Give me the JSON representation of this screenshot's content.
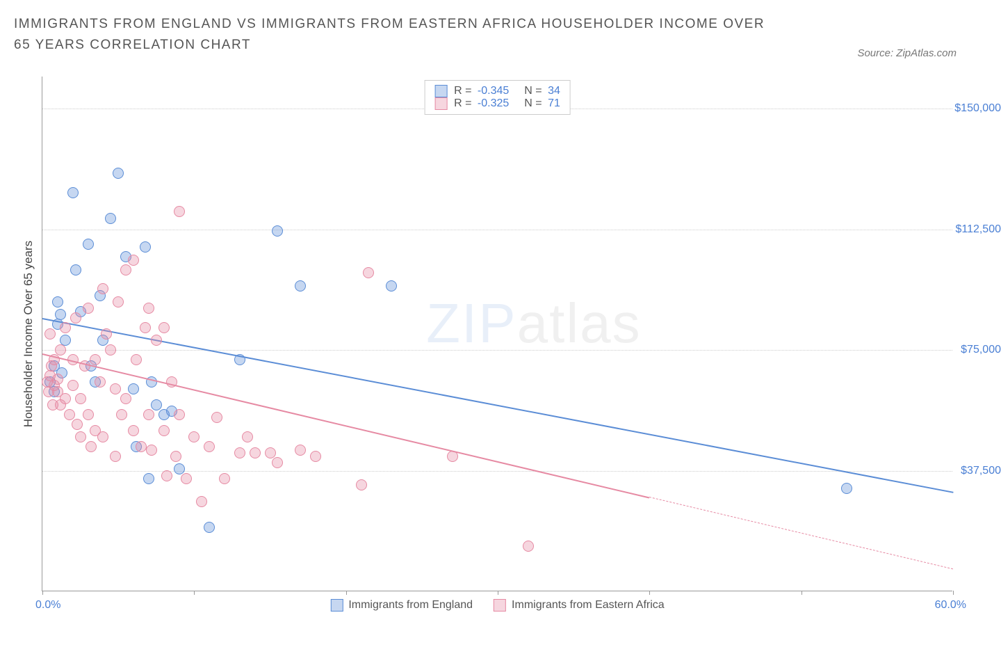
{
  "title": "IMMIGRANTS FROM ENGLAND VS IMMIGRANTS FROM EASTERN AFRICA HOUSEHOLDER INCOME OVER 65 YEARS CORRELATION CHART",
  "source": "Source: ZipAtlas.com",
  "watermark_text_bold": "ZIP",
  "watermark_text_thin": "atlas",
  "chart": {
    "type": "scatter",
    "background_color": "#ffffff",
    "grid_color": "#cccccc",
    "axis_color": "#999999",
    "y_axis_title": "Householder Income Over 65 years",
    "y_axis_title_color": "#444444",
    "y_axis_title_fontsize": 17,
    "tick_label_color": "#4a7fd4",
    "tick_label_fontsize": 16,
    "xlim": [
      0,
      60
    ],
    "ylim": [
      0,
      160000
    ],
    "x_tick_positions": [
      0,
      10,
      20,
      30,
      40,
      50,
      60
    ],
    "x_tick_labels_shown": {
      "start": "0.0%",
      "end": "60.0%"
    },
    "y_ticks": [
      {
        "value": 37500,
        "label": "$37,500"
      },
      {
        "value": 75000,
        "label": "$75,000"
      },
      {
        "value": 112500,
        "label": "$112,500"
      },
      {
        "value": 150000,
        "label": "$150,000"
      }
    ],
    "marker_radius": 8,
    "marker_border_width": 1.5,
    "marker_fill_opacity": 0.35,
    "trend_line_width": 2,
    "series": [
      {
        "name": "Immigrants from England",
        "color": "#5b8dd6",
        "fill": "rgba(91,141,214,0.35)",
        "R": "-0.345",
        "N": "34",
        "trend": {
          "x1": 0,
          "y1": 85000,
          "x2": 60,
          "y2": 31000,
          "dash_from_x": null
        },
        "points": [
          [
            0.5,
            65000
          ],
          [
            0.8,
            70000
          ],
          [
            0.8,
            62000
          ],
          [
            1.0,
            90000
          ],
          [
            1.0,
            83000
          ],
          [
            1.2,
            86000
          ],
          [
            1.3,
            68000
          ],
          [
            1.5,
            78000
          ],
          [
            2.0,
            124000
          ],
          [
            2.2,
            100000
          ],
          [
            2.5,
            87000
          ],
          [
            3.0,
            108000
          ],
          [
            3.2,
            70000
          ],
          [
            3.5,
            65000
          ],
          [
            4.0,
            78000
          ],
          [
            4.5,
            116000
          ],
          [
            5.0,
            130000
          ],
          [
            5.5,
            104000
          ],
          [
            6.0,
            63000
          ],
          [
            6.2,
            45000
          ],
          [
            6.8,
            107000
          ],
          [
            7.0,
            35000
          ],
          [
            7.2,
            65000
          ],
          [
            7.5,
            58000
          ],
          [
            8.0,
            55000
          ],
          [
            8.5,
            56000
          ],
          [
            9.0,
            38000
          ],
          [
            11.0,
            20000
          ],
          [
            13.0,
            72000
          ],
          [
            15.5,
            112000
          ],
          [
            17.0,
            95000
          ],
          [
            23.0,
            95000
          ],
          [
            53.0,
            32000
          ],
          [
            3.8,
            92000
          ]
        ]
      },
      {
        "name": "Immigrants from Eastern Africa",
        "color": "#e68aa3",
        "fill": "rgba(230,138,163,0.35)",
        "R": "-0.325",
        "N": "71",
        "trend": {
          "x1": 0,
          "y1": 74000,
          "x2": 60,
          "y2": 7000,
          "dash_from_x": 40
        },
        "points": [
          [
            0.3,
            65000
          ],
          [
            0.4,
            62000
          ],
          [
            0.5,
            67000
          ],
          [
            0.5,
            80000
          ],
          [
            0.6,
            70000
          ],
          [
            0.7,
            58000
          ],
          [
            0.8,
            64000
          ],
          [
            0.8,
            72000
          ],
          [
            1.0,
            62000
          ],
          [
            1.0,
            66000
          ],
          [
            1.2,
            58000
          ],
          [
            1.2,
            75000
          ],
          [
            1.5,
            82000
          ],
          [
            1.5,
            60000
          ],
          [
            1.8,
            55000
          ],
          [
            2.0,
            64000
          ],
          [
            2.0,
            72000
          ],
          [
            2.2,
            85000
          ],
          [
            2.3,
            52000
          ],
          [
            2.5,
            60000
          ],
          [
            2.5,
            48000
          ],
          [
            2.8,
            70000
          ],
          [
            3.0,
            55000
          ],
          [
            3.0,
            88000
          ],
          [
            3.2,
            45000
          ],
          [
            3.5,
            72000
          ],
          [
            3.5,
            50000
          ],
          [
            3.8,
            65000
          ],
          [
            4.0,
            94000
          ],
          [
            4.0,
            48000
          ],
          [
            4.2,
            80000
          ],
          [
            4.5,
            75000
          ],
          [
            4.8,
            42000
          ],
          [
            5.0,
            90000
          ],
          [
            5.2,
            55000
          ],
          [
            5.5,
            100000
          ],
          [
            5.5,
            60000
          ],
          [
            6.0,
            103000
          ],
          [
            6.0,
            50000
          ],
          [
            6.2,
            72000
          ],
          [
            6.5,
            45000
          ],
          [
            6.8,
            82000
          ],
          [
            7.0,
            88000
          ],
          [
            7.0,
            55000
          ],
          [
            7.2,
            44000
          ],
          [
            7.5,
            78000
          ],
          [
            8.0,
            82000
          ],
          [
            8.0,
            50000
          ],
          [
            8.2,
            36000
          ],
          [
            8.5,
            65000
          ],
          [
            8.8,
            42000
          ],
          [
            9.0,
            55000
          ],
          [
            9.0,
            118000
          ],
          [
            9.5,
            35000
          ],
          [
            10.0,
            48000
          ],
          [
            10.5,
            28000
          ],
          [
            11.0,
            45000
          ],
          [
            11.5,
            54000
          ],
          [
            12.0,
            35000
          ],
          [
            13.0,
            43000
          ],
          [
            13.5,
            48000
          ],
          [
            14.0,
            43000
          ],
          [
            15.0,
            43000
          ],
          [
            15.5,
            40000
          ],
          [
            17.0,
            44000
          ],
          [
            18.0,
            42000
          ],
          [
            21.0,
            33000
          ],
          [
            21.5,
            99000
          ],
          [
            27.0,
            42000
          ],
          [
            32.0,
            14000
          ],
          [
            4.8,
            63000
          ]
        ]
      }
    ],
    "legend_bottom": [
      {
        "swatch": "#5b8dd6",
        "fill": "rgba(91,141,214,0.35)",
        "label": "Immigrants from England"
      },
      {
        "swatch": "#e68aa3",
        "fill": "rgba(230,138,163,0.35)",
        "label": "Immigrants from Eastern Africa"
      }
    ]
  }
}
